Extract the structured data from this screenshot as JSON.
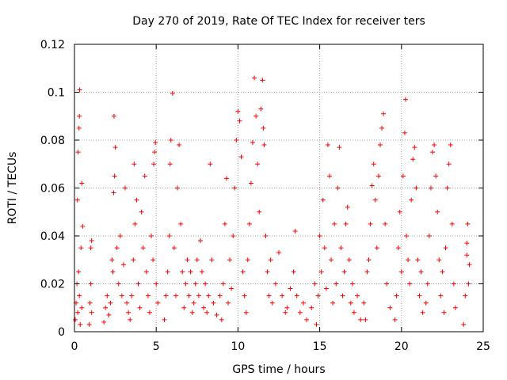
{
  "chart_data": {
    "type": "scatter",
    "title": "Day 270 of 2019, Rate Of TEC Index for receiver ters",
    "xlabel": "GPS time / hours",
    "ylabel": "ROTI / TECUs",
    "xlim": [
      0,
      25
    ],
    "ylim": [
      0,
      0.12
    ],
    "xticks": [
      0,
      5,
      10,
      15,
      20,
      25
    ],
    "yticks": [
      0,
      0.02,
      0.04,
      0.06,
      0.08,
      0.1,
      0.12
    ],
    "xtick_labels": [
      "0",
      "5",
      "10",
      "15",
      "20",
      "25"
    ],
    "ytick_labels": [
      "0",
      "0.02",
      "0.04",
      "0.06",
      "0.08",
      "0.1",
      "0.12"
    ],
    "grid": true,
    "marker": "+",
    "series": [
      {
        "name": "ROTI",
        "color": "#ff0000",
        "points": [
          [
            0.05,
            0.005
          ],
          [
            0.1,
            0.012
          ],
          [
            0.15,
            0.02
          ],
          [
            0.2,
            0.008
          ],
          [
            0.25,
            0.025
          ],
          [
            0.3,
            0.015
          ],
          [
            0.18,
            0.055
          ],
          [
            0.22,
            0.075
          ],
          [
            0.28,
            0.085
          ],
          [
            0.3,
            0.09
          ],
          [
            0.32,
            0.101
          ],
          [
            0.45,
            0.062
          ],
          [
            0.5,
            0.044
          ],
          [
            0.4,
            0.035
          ],
          [
            0.35,
            0.003
          ],
          [
            0.45,
            0.01
          ],
          [
            0.9,
            0.003
          ],
          [
            0.95,
            0.012
          ],
          [
            1.0,
            0.02
          ],
          [
            1.05,
            0.008
          ],
          [
            1.0,
            0.035
          ],
          [
            1.05,
            0.038
          ],
          [
            1.8,
            0.004
          ],
          [
            1.9,
            0.01
          ],
          [
            2.0,
            0.015
          ],
          [
            2.1,
            0.007
          ],
          [
            2.2,
            0.012
          ],
          [
            2.3,
            0.03
          ],
          [
            2.35,
            0.025
          ],
          [
            2.4,
            0.058
          ],
          [
            2.45,
            0.065
          ],
          [
            2.42,
            0.09
          ],
          [
            2.5,
            0.077
          ],
          [
            2.6,
            0.035
          ],
          [
            2.7,
            0.02
          ],
          [
            2.8,
            0.04
          ],
          [
            2.9,
            0.015
          ],
          [
            3.0,
            0.028
          ],
          [
            3.1,
            0.06
          ],
          [
            3.2,
            0.012
          ],
          [
            3.3,
            0.008
          ],
          [
            3.4,
            0.005
          ],
          [
            3.5,
            0.015
          ],
          [
            3.6,
            0.03
          ],
          [
            3.7,
            0.045
          ],
          [
            3.65,
            0.07
          ],
          [
            3.8,
            0.055
          ],
          [
            3.9,
            0.02
          ],
          [
            4.0,
            0.01
          ],
          [
            4.1,
            0.05
          ],
          [
            4.2,
            0.035
          ],
          [
            4.3,
            0.065
          ],
          [
            4.4,
            0.025
          ],
          [
            4.5,
            0.015
          ],
          [
            4.6,
            0.008
          ],
          [
            4.7,
            0.04
          ],
          [
            4.8,
            0.03
          ],
          [
            4.85,
            0.07
          ],
          [
            4.9,
            0.075
          ],
          [
            4.95,
            0.079
          ],
          [
            5.0,
            0.02
          ],
          [
            5.1,
            0.012
          ],
          [
            5.5,
            0.005
          ],
          [
            5.6,
            0.015
          ],
          [
            5.7,
            0.025
          ],
          [
            5.8,
            0.04
          ],
          [
            5.85,
            0.07
          ],
          [
            5.9,
            0.08
          ],
          [
            6.0,
            0.0995
          ],
          [
            6.1,
            0.035
          ],
          [
            6.2,
            0.015
          ],
          [
            6.3,
            0.06
          ],
          [
            6.4,
            0.078
          ],
          [
            6.5,
            0.045
          ],
          [
            6.6,
            0.025
          ],
          [
            6.7,
            0.01
          ],
          [
            6.8,
            0.02
          ],
          [
            6.9,
            0.03
          ],
          [
            7.0,
            0.015
          ],
          [
            7.1,
            0.025
          ],
          [
            7.2,
            0.008
          ],
          [
            7.3,
            0.012
          ],
          [
            7.4,
            0.02
          ],
          [
            7.5,
            0.03
          ],
          [
            7.6,
            0.015
          ],
          [
            7.7,
            0.038
          ],
          [
            7.8,
            0.025
          ],
          [
            7.9,
            0.01
          ],
          [
            8.0,
            0.02
          ],
          [
            8.1,
            0.008
          ],
          [
            8.2,
            0.015
          ],
          [
            8.3,
            0.07
          ],
          [
            8.4,
            0.03
          ],
          [
            8.5,
            0.012
          ],
          [
            8.7,
            0.007
          ],
          [
            8.9,
            0.015
          ],
          [
            9.0,
            0.005
          ],
          [
            9.1,
            0.02
          ],
          [
            9.2,
            0.045
          ],
          [
            9.3,
            0.064
          ],
          [
            9.4,
            0.012
          ],
          [
            9.5,
            0.03
          ],
          [
            9.6,
            0.018
          ],
          [
            9.7,
            0.04
          ],
          [
            9.8,
            0.06
          ],
          [
            9.9,
            0.08
          ],
          [
            10.0,
            0.092
          ],
          [
            10.1,
            0.088
          ],
          [
            10.2,
            0.073
          ],
          [
            10.3,
            0.025
          ],
          [
            10.4,
            0.015
          ],
          [
            10.5,
            0.008
          ],
          [
            10.6,
            0.03
          ],
          [
            10.7,
            0.045
          ],
          [
            10.8,
            0.062
          ],
          [
            10.9,
            0.079
          ],
          [
            11.0,
            0.106
          ],
          [
            11.1,
            0.09
          ],
          [
            11.2,
            0.07
          ],
          [
            11.3,
            0.05
          ],
          [
            11.4,
            0.093
          ],
          [
            11.5,
            0.105
          ],
          [
            11.55,
            0.085
          ],
          [
            11.6,
            0.078
          ],
          [
            11.7,
            0.04
          ],
          [
            11.8,
            0.025
          ],
          [
            11.9,
            0.015
          ],
          [
            12.0,
            0.03
          ],
          [
            12.1,
            0.012
          ],
          [
            12.3,
            0.02
          ],
          [
            12.5,
            0.033
          ],
          [
            12.7,
            0.015
          ],
          [
            12.9,
            0.008
          ],
          [
            13.0,
            0.01
          ],
          [
            13.2,
            0.018
          ],
          [
            13.4,
            0.025
          ],
          [
            13.5,
            0.042
          ],
          [
            13.6,
            0.015
          ],
          [
            13.8,
            0.008
          ],
          [
            14.0,
            0.012
          ],
          [
            14.2,
            0.005
          ],
          [
            14.5,
            0.01
          ],
          [
            14.7,
            0.02
          ],
          [
            14.8,
            0.003
          ],
          [
            14.9,
            0.015
          ],
          [
            15.0,
            0.04
          ],
          [
            15.1,
            0.025
          ],
          [
            15.2,
            0.055
          ],
          [
            15.3,
            0.035
          ],
          [
            15.4,
            0.018
          ],
          [
            15.5,
            0.078
          ],
          [
            15.6,
            0.065
          ],
          [
            15.7,
            0.03
          ],
          [
            15.8,
            0.012
          ],
          [
            15.9,
            0.045
          ],
          [
            16.0,
            0.02
          ],
          [
            16.1,
            0.06
          ],
          [
            16.2,
            0.077
          ],
          [
            16.3,
            0.035
          ],
          [
            16.4,
            0.015
          ],
          [
            16.5,
            0.025
          ],
          [
            16.6,
            0.045
          ],
          [
            16.7,
            0.052
          ],
          [
            16.8,
            0.03
          ],
          [
            16.9,
            0.012
          ],
          [
            17.0,
            0.02
          ],
          [
            17.1,
            0.008
          ],
          [
            17.3,
            0.015
          ],
          [
            17.5,
            0.005
          ],
          [
            17.7,
            0.012
          ],
          [
            17.8,
            0.005
          ],
          [
            17.9,
            0.025
          ],
          [
            18.0,
            0.03
          ],
          [
            18.1,
            0.045
          ],
          [
            18.2,
            0.061
          ],
          [
            18.3,
            0.07
          ],
          [
            18.4,
            0.055
          ],
          [
            18.5,
            0.035
          ],
          [
            18.6,
            0.065
          ],
          [
            18.7,
            0.078
          ],
          [
            18.8,
            0.085
          ],
          [
            18.9,
            0.091
          ],
          [
            19.0,
            0.045
          ],
          [
            19.1,
            0.02
          ],
          [
            19.3,
            0.01
          ],
          [
            19.6,
            0.005
          ],
          [
            19.7,
            0.015
          ],
          [
            19.8,
            0.035
          ],
          [
            19.9,
            0.05
          ],
          [
            20.0,
            0.025
          ],
          [
            20.1,
            0.065
          ],
          [
            20.2,
            0.083
          ],
          [
            20.25,
            0.097
          ],
          [
            20.3,
            0.04
          ],
          [
            20.4,
            0.03
          ],
          [
            20.5,
            0.02
          ],
          [
            20.6,
            0.055
          ],
          [
            20.7,
            0.072
          ],
          [
            20.8,
            0.077
          ],
          [
            20.9,
            0.06
          ],
          [
            21.0,
            0.03
          ],
          [
            21.1,
            0.015
          ],
          [
            21.2,
            0.025
          ],
          [
            21.3,
            0.008
          ],
          [
            21.5,
            0.012
          ],
          [
            21.6,
            0.02
          ],
          [
            21.7,
            0.04
          ],
          [
            21.8,
            0.06
          ],
          [
            21.9,
            0.075
          ],
          [
            22.0,
            0.078
          ],
          [
            22.1,
            0.065
          ],
          [
            22.2,
            0.05
          ],
          [
            22.3,
            0.03
          ],
          [
            22.4,
            0.015
          ],
          [
            22.5,
            0.025
          ],
          [
            22.6,
            0.008
          ],
          [
            22.7,
            0.035
          ],
          [
            22.8,
            0.06
          ],
          [
            22.9,
            0.07
          ],
          [
            23.0,
            0.078
          ],
          [
            23.1,
            0.045
          ],
          [
            23.2,
            0.02
          ],
          [
            23.3,
            0.01
          ],
          [
            23.8,
            0.003
          ],
          [
            23.9,
            0.015
          ],
          [
            24.0,
            0.032
          ],
          [
            24.05,
            0.045
          ],
          [
            24.1,
            0.02
          ],
          [
            24.15,
            0.028
          ],
          [
            24.0,
            0.037
          ]
        ]
      }
    ]
  }
}
